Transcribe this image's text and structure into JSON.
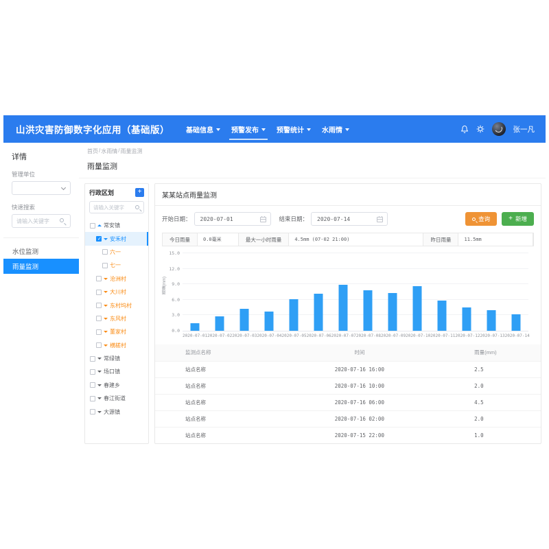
{
  "navbar": {
    "brand": "山洪灾害防御数字化应用（基础版）",
    "menu": [
      {
        "label": "基础信息",
        "active": false
      },
      {
        "label": "预警发布",
        "active": true
      },
      {
        "label": "预警统计",
        "active": false
      },
      {
        "label": "水雨情",
        "active": false
      }
    ],
    "user": "张一凡"
  },
  "sidebar": {
    "title": "详情",
    "unit_label": "管理单位",
    "search_label": "快速搜索",
    "search_placeholder": "请输入关键字",
    "items": [
      {
        "label": "水位监测",
        "active": false
      },
      {
        "label": "雨量监测",
        "active": true
      }
    ]
  },
  "breadcrumb": {
    "parts": [
      "首页",
      "水雨情",
      "雨量监测"
    ],
    "separator": "/"
  },
  "page_title": "雨量监测",
  "tree_panel": {
    "title": "行政区划",
    "add_label": "+",
    "search_placeholder": "请输入关键字",
    "nodes": [
      {
        "label": "常安镇",
        "level": 0,
        "checked": false,
        "caret": "up",
        "color": "dark",
        "caret_color": "blue",
        "selected": false
      },
      {
        "label": "安禾村",
        "level": 1,
        "checked": true,
        "caret": "down",
        "color": "blue",
        "caret_color": "blue",
        "selected": true
      },
      {
        "label": "六一",
        "level": 2,
        "checked": false,
        "caret": "none",
        "color": "orange",
        "caret_color": "orange",
        "selected": false
      },
      {
        "label": "七一",
        "level": 2,
        "checked": false,
        "caret": "none",
        "color": "orange",
        "caret_color": "orange",
        "selected": false
      },
      {
        "label": "沧洲村",
        "level": 1,
        "checked": false,
        "caret": "down",
        "color": "orange",
        "caret_color": "orange",
        "selected": false
      },
      {
        "label": "大川村",
        "level": 1,
        "checked": false,
        "caret": "down",
        "color": "orange",
        "caret_color": "orange",
        "selected": false
      },
      {
        "label": "东村坞村",
        "level": 1,
        "checked": false,
        "caret": "down",
        "color": "orange",
        "caret_color": "orange",
        "selected": false
      },
      {
        "label": "东风村",
        "level": 1,
        "checked": false,
        "caret": "down",
        "color": "orange",
        "caret_color": "orange",
        "selected": false
      },
      {
        "label": "董家村",
        "level": 1,
        "checked": false,
        "caret": "down",
        "color": "orange",
        "caret_color": "orange",
        "selected": false
      },
      {
        "label": "横槎村",
        "level": 1,
        "checked": false,
        "caret": "down",
        "color": "orange",
        "caret_color": "orange",
        "selected": false
      },
      {
        "label": "常绿镇",
        "level": 0,
        "checked": false,
        "caret": "down",
        "color": "dark",
        "caret_color": "dark",
        "selected": false
      },
      {
        "label": "场口镇",
        "level": 0,
        "checked": false,
        "caret": "down",
        "color": "dark",
        "caret_color": "dark",
        "selected": false
      },
      {
        "label": "春建乡",
        "level": 0,
        "checked": false,
        "caret": "down",
        "color": "dark",
        "caret_color": "dark",
        "selected": false
      },
      {
        "label": "春江街道",
        "level": 0,
        "checked": false,
        "caret": "down",
        "color": "dark",
        "caret_color": "dark",
        "selected": false
      },
      {
        "label": "大源镇",
        "level": 0,
        "checked": false,
        "caret": "down",
        "color": "dark",
        "caret_color": "dark",
        "selected": false
      }
    ]
  },
  "main": {
    "panel_title": "某某站点雨量监测",
    "filters": {
      "start_label": "开始日期：",
      "start_value": "2020-07-01",
      "end_label": "结束日期：",
      "end_value": "2020-07-14",
      "query_label": "查询",
      "add_label": "新增"
    },
    "stats": [
      {
        "label": "今日雨量",
        "value": "0.0毫米"
      },
      {
        "label": "最大一小时雨量",
        "value": "4.5mm (07-02 21:00)"
      },
      {
        "label": "昨日雨量",
        "value": "11.5mm"
      }
    ],
    "table": {
      "headers": [
        "监测点名称",
        "时间",
        "雨量(mm)"
      ],
      "rows": [
        [
          "站点名称",
          "2020-07-16 16:00",
          "2.5"
        ],
        [
          "站点名称",
          "2020-07-16 10:00",
          "2.0"
        ],
        [
          "站点名称",
          "2020-07-16 06:00",
          "4.5"
        ],
        [
          "站点名称",
          "2020-07-16 02:00",
          "2.0"
        ],
        [
          "站点名称",
          "2020-07-15 22:00",
          "1.0"
        ]
      ]
    }
  },
  "chart_data": {
    "type": "bar",
    "title": "",
    "xlabel": "",
    "ylabel": "雨量(mm)",
    "categories": [
      "2020-07-01",
      "2020-07-02",
      "2020-07-03",
      "2020-07-04",
      "2020-07-05",
      "2020-07-06",
      "2020-07-07",
      "2020-07-08",
      "2020-07-09",
      "2020-07-10",
      "2020-07-11",
      "2020-07-12",
      "2020-07-13",
      "2020-07-14"
    ],
    "values": [
      1.4,
      2.8,
      4.2,
      3.7,
      6.0,
      7.1,
      8.8,
      7.7,
      7.2,
      8.6,
      5.8,
      4.5,
      3.9,
      3.1
    ],
    "ylim": [
      0,
      15
    ],
    "ytick_labels": [
      "0.0",
      "3.0",
      "6.0",
      "9.0",
      "12.0",
      "15.0"
    ],
    "grid": true,
    "legend": "none",
    "bar_color": "#2f9ff5"
  },
  "colors": {
    "navbar_bg": "#2b7cee",
    "accent": "#1890ff",
    "bar": "#2f9ff5",
    "query_button": "#ef9335",
    "add_button": "#4cae4f",
    "tree_orange": "#fa8c16",
    "selected_row_bg": "#e5f2fd",
    "table_header_bg": "#fafafa"
  }
}
